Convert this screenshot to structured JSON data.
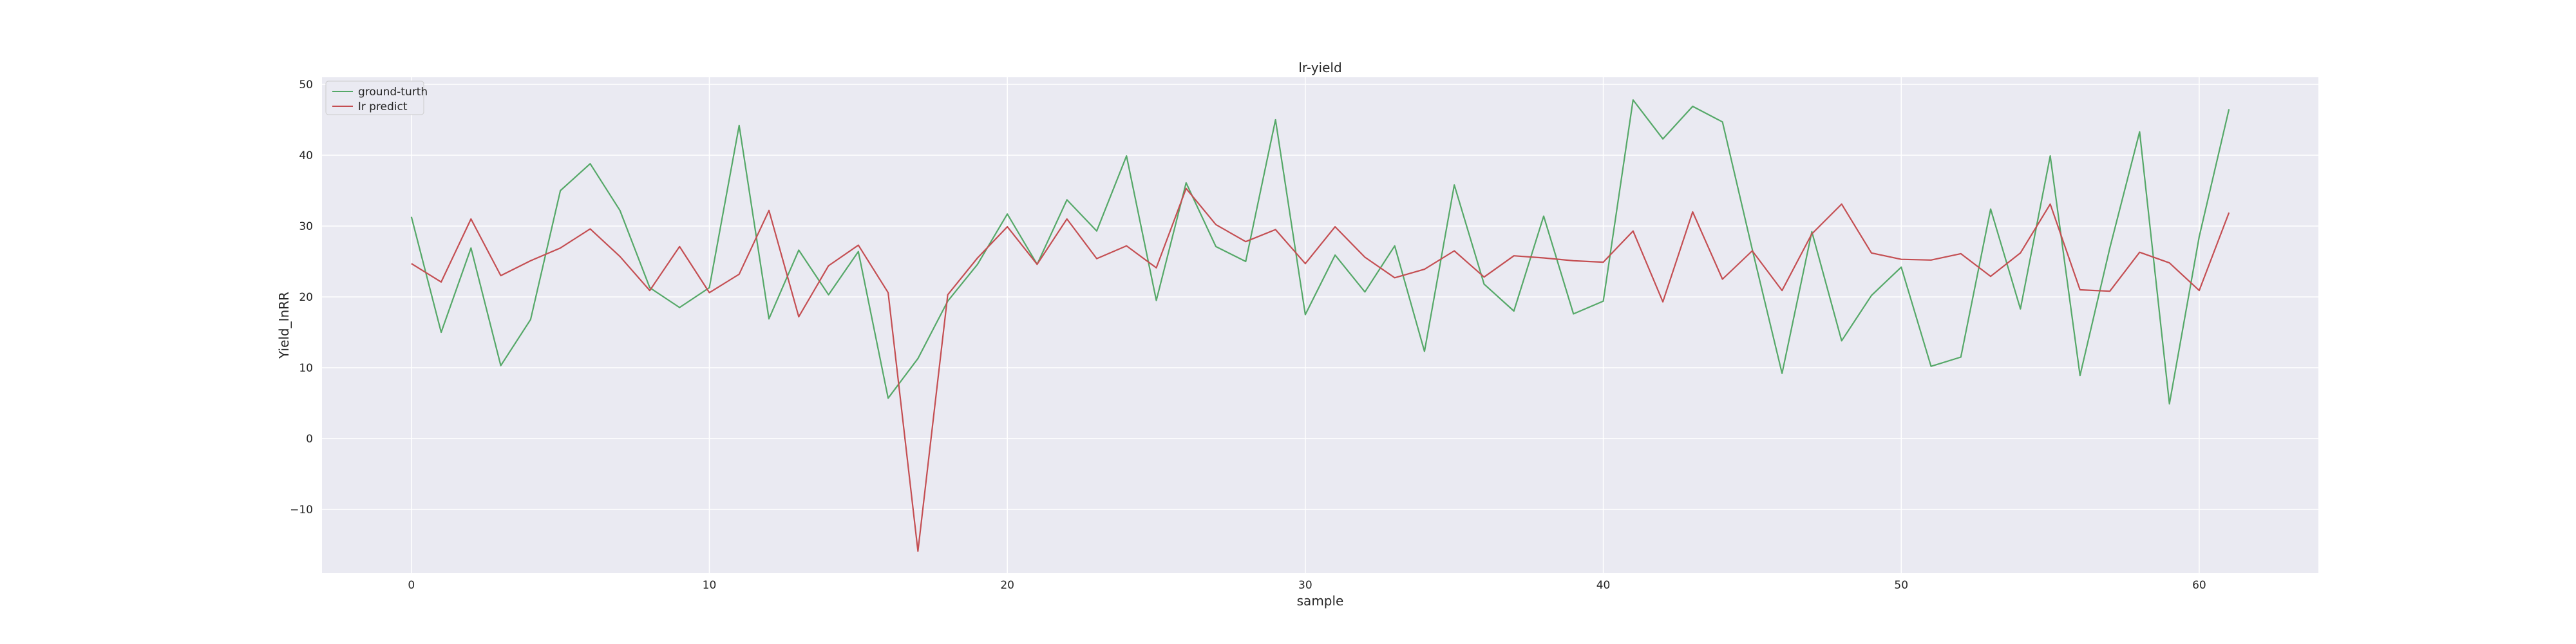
{
  "chart_data": {
    "type": "line",
    "title": "lr-yield",
    "xlabel": "sample",
    "ylabel": "Yield_InRR",
    "xlim": [
      -3,
      64
    ],
    "ylim": [
      -19,
      51
    ],
    "xticks": [
      0,
      10,
      20,
      30,
      40,
      50,
      60
    ],
    "yticks": [
      -10,
      0,
      10,
      20,
      30,
      40,
      50
    ],
    "grid": true,
    "legend_position": "top-left",
    "background": "#eaeaf2",
    "series": [
      {
        "name": "ground-turth",
        "color": "#55a868",
        "x": [
          0,
          1,
          2,
          3,
          4,
          5,
          6,
          7,
          8,
          9,
          10,
          11,
          12,
          13,
          14,
          15,
          16,
          17,
          18,
          19,
          20,
          21,
          22,
          23,
          24,
          25,
          26,
          27,
          28,
          29,
          30,
          31,
          32,
          33,
          34,
          35,
          36,
          37,
          38,
          39,
          40,
          41,
          42,
          43,
          44,
          45,
          46,
          47,
          48,
          49,
          50,
          51,
          52,
          53,
          54,
          55,
          56,
          57,
          58,
          59,
          60,
          61
        ],
        "values": [
          31.3,
          15.0,
          26.9,
          10.3,
          16.8,
          35.0,
          38.8,
          32.2,
          21.3,
          18.5,
          21.3,
          44.2,
          16.9,
          26.6,
          20.3,
          26.4,
          5.7,
          11.3,
          19.4,
          24.6,
          31.7,
          24.6,
          33.7,
          29.3,
          39.9,
          19.5,
          36.1,
          27.1,
          25.0,
          45.0,
          17.5,
          25.9,
          20.7,
          27.2,
          12.3,
          35.8,
          21.8,
          18.0,
          31.4,
          17.6,
          19.4,
          47.8,
          42.3,
          46.9,
          44.7,
          26.7,
          9.2,
          29.2,
          13.8,
          20.2,
          24.2,
          10.2,
          11.5,
          32.4,
          18.3,
          39.9,
          8.9,
          26.9,
          43.3,
          4.9,
          28.5,
          46.5
        ]
      },
      {
        "name": "lr predict",
        "color": "#c44e52",
        "x": [
          0,
          1,
          2,
          3,
          4,
          5,
          6,
          7,
          8,
          9,
          10,
          11,
          12,
          13,
          14,
          15,
          16,
          17,
          18,
          19,
          20,
          21,
          22,
          23,
          24,
          25,
          26,
          27,
          28,
          29,
          30,
          31,
          32,
          33,
          34,
          35,
          36,
          37,
          38,
          39,
          40,
          41,
          42,
          43,
          44,
          45,
          46,
          47,
          48,
          49,
          50,
          51,
          52,
          53,
          54,
          55,
          56,
          57,
          58,
          59,
          60,
          61
        ],
        "values": [
          24.7,
          22.1,
          31.0,
          23.0,
          25.1,
          26.9,
          29.6,
          25.7,
          20.9,
          27.1,
          20.6,
          23.2,
          32.2,
          17.2,
          24.4,
          27.3,
          20.6,
          -15.9,
          20.3,
          25.5,
          29.9,
          24.6,
          31.0,
          25.4,
          27.2,
          24.1,
          35.3,
          30.2,
          27.8,
          29.5,
          24.7,
          29.9,
          25.6,
          22.7,
          23.9,
          26.5,
          22.8,
          25.8,
          25.5,
          25.1,
          24.9,
          29.3,
          19.3,
          32.0,
          22.5,
          26.5,
          20.9,
          28.9,
          33.1,
          26.2,
          25.3,
          25.2,
          26.1,
          22.9,
          26.2,
          33.1,
          21.0,
          20.8,
          26.3,
          24.8,
          20.9,
          31.9
        ]
      }
    ]
  }
}
